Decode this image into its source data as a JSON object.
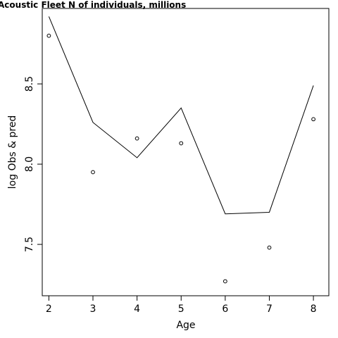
{
  "chart_data": {
    "type": "line",
    "title": "Acoustic Fleet   N of individuals, millions",
    "xlabel": "Age",
    "ylabel": "log Obs & pred",
    "x": [
      2,
      3,
      4,
      5,
      6,
      7,
      8
    ],
    "series": [
      {
        "kind": "line",
        "values": [
          8.92,
          8.26,
          8.04,
          8.35,
          7.69,
          7.7,
          8.49
        ]
      },
      {
        "kind": "points",
        "values": [
          8.8,
          7.95,
          8.16,
          8.13,
          7.27,
          7.48,
          8.28
        ]
      }
    ],
    "xlim": [
      1.85,
      8.35
    ],
    "ylim": [
      7.18,
      8.97
    ],
    "xticks": [
      2,
      3,
      4,
      5,
      6,
      7,
      8
    ],
    "yticks": [
      7.5,
      8.0,
      8.5
    ],
    "ytick_labels": [
      "7.5",
      "8.0",
      "8.5"
    ],
    "grid": false,
    "colors": {
      "line": "#000000",
      "points": "#000000",
      "axis": "#000000"
    }
  }
}
